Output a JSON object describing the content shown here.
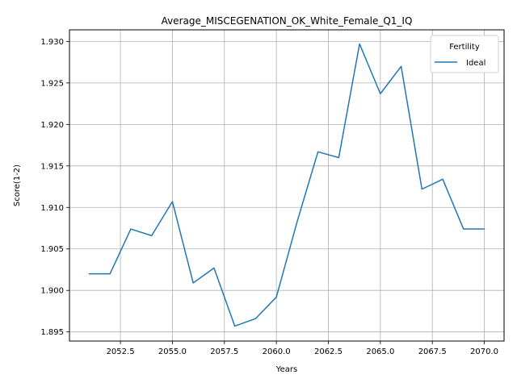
{
  "chart_data": {
    "type": "line",
    "title": "Average_MISCEGENATION_OK_White_Female_Q1_IQ",
    "xlabel": "Years",
    "ylabel": "Score(1-2)",
    "xlim": [
      2050.05,
      2070.95
    ],
    "ylim": [
      1.8939,
      1.9314
    ],
    "xticks": [
      2052.5,
      2055.0,
      2057.5,
      2060.0,
      2062.5,
      2065.0,
      2067.5,
      2070.0
    ],
    "xtick_labels": [
      "2052.5",
      "2055.0",
      "2057.5",
      "2060.0",
      "2062.5",
      "2065.0",
      "2067.5",
      "2070.0"
    ],
    "yticks": [
      1.895,
      1.9,
      1.905,
      1.91,
      1.915,
      1.92,
      1.925,
      1.93
    ],
    "ytick_labels": [
      "1.895",
      "1.900",
      "1.905",
      "1.910",
      "1.915",
      "1.920",
      "1.925",
      "1.930"
    ],
    "grid": true,
    "legend": {
      "title": "Fertility",
      "position": "top-right"
    },
    "series": [
      {
        "name": "Ideal",
        "color": "#1f77b4",
        "x": [
          2051,
          2052,
          2053,
          2054,
          2055,
          2056,
          2057,
          2058,
          2059,
          2060,
          2061,
          2062,
          2063,
          2064,
          2065,
          2066,
          2067,
          2068,
          2069,
          2070
        ],
        "y": [
          1.902,
          1.902,
          1.9074,
          1.9066,
          1.9107,
          1.9009,
          1.9027,
          1.8957,
          1.8966,
          1.8992,
          1.9083,
          1.9167,
          1.916,
          1.9297,
          1.9237,
          1.927,
          1.9122,
          1.9134,
          1.9074,
          1.9074
        ]
      }
    ]
  }
}
